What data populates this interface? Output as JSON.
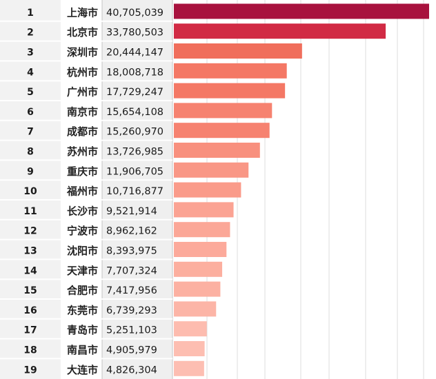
{
  "chart_data": {
    "type": "bar",
    "orientation": "horizontal",
    "title": "",
    "xlabel": "",
    "ylabel": "",
    "xlim": [
      0,
      41500000
    ],
    "grid": true,
    "legend": "none",
    "columns": [
      "rank",
      "city",
      "value"
    ],
    "rows": [
      {
        "rank": "1",
        "city": "上海市",
        "value": 40705039,
        "display": "40,705,039",
        "color": "#a8123e"
      },
      {
        "rank": "2",
        "city": "北京市",
        "value": 33780503,
        "display": "33,780,503",
        "color": "#d12a44"
      },
      {
        "rank": "3",
        "city": "深圳市",
        "value": 20444147,
        "display": "20,444,147",
        "color": "#f06e5c"
      },
      {
        "rank": "4",
        "city": "杭州市",
        "value": 18008718,
        "display": "18,008,718",
        "color": "#f47865"
      },
      {
        "rank": "5",
        "city": "广州市",
        "value": 17729247,
        "display": "17,729,247",
        "color": "#f47865"
      },
      {
        "rank": "6",
        "city": "南京市",
        "value": 15654108,
        "display": "15,654,108",
        "color": "#f68270"
      },
      {
        "rank": "7",
        "city": "成都市",
        "value": 15260970,
        "display": "15,260,970",
        "color": "#f68270"
      },
      {
        "rank": "8",
        "city": "苏州市",
        "value": 13726985,
        "display": "13,726,985",
        "color": "#f8907e"
      },
      {
        "rank": "9",
        "city": "重庆市",
        "value": 11906705,
        "display": "11,906,705",
        "color": "#f99786"
      },
      {
        "rank": "10",
        "city": "福州市",
        "value": 10716877,
        "display": "10,716,877",
        "color": "#fa9b8a"
      },
      {
        "rank": "11",
        "city": "长沙市",
        "value": 9521914,
        "display": "9,521,914",
        "color": "#fba393"
      },
      {
        "rank": "12",
        "city": "宁波市",
        "value": 8962162,
        "display": "8,962,162",
        "color": "#fba797"
      },
      {
        "rank": "13",
        "city": "沈阳市",
        "value": 8393975,
        "display": "8,393,975",
        "color": "#fcaa9b"
      },
      {
        "rank": "14",
        "city": "天津市",
        "value": 7707324,
        "display": "7,707,324",
        "color": "#fcaf9f"
      },
      {
        "rank": "15",
        "city": "合肥市",
        "value": 7417956,
        "display": "7,417,956",
        "color": "#fcb1a2"
      },
      {
        "rank": "16",
        "city": "东莞市",
        "value": 6739293,
        "display": "6,739,293",
        "color": "#fcb5a7"
      },
      {
        "rank": "17",
        "city": "青岛市",
        "value": 5251103,
        "display": "5,251,103",
        "color": "#fdbcaf"
      },
      {
        "rank": "18",
        "city": "南昌市",
        "value": 4905979,
        "display": "4,905,979",
        "color": "#fdbeb1"
      },
      {
        "rank": "19",
        "city": "大连市",
        "value": 4826304,
        "display": "4,826,304",
        "color": "#fdbeb2"
      }
    ]
  },
  "colors": {
    "rank_band": "#f2f2f2",
    "value_band": "#efefef",
    "divider": "#c4c4c4",
    "grid": "#dcdcdc"
  }
}
